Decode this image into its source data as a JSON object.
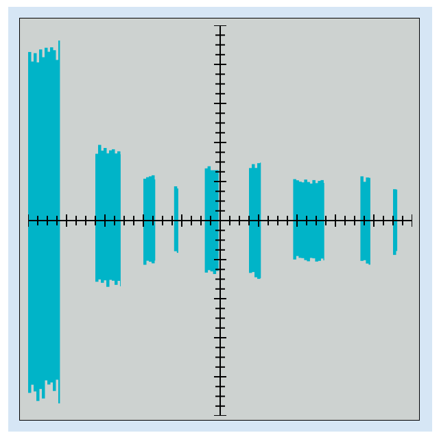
{
  "colors": {
    "background": "#d6e6f5",
    "screen": "#cdd2d0",
    "border": "#000000",
    "axis": "#000000",
    "signal": "#00b4c8"
  },
  "scope": {
    "signal_type": "burst signal trace",
    "h_divisions": 10,
    "v_divisions": 10,
    "minor_ticks_per_division": 4,
    "bursts": [
      {
        "start_div": 0.0,
        "end_div": 0.82,
        "amp_top": 4.65,
        "amp_bottom": 4.7
      },
      {
        "start_div": 1.75,
        "end_div": 2.4,
        "amp_top": 1.95,
        "amp_bottom": 1.7
      },
      {
        "start_div": 3.0,
        "end_div": 3.3,
        "amp_top": 1.2,
        "amp_bottom": 1.15
      },
      {
        "start_div": 3.8,
        "end_div": 3.9,
        "amp_top": 0.95,
        "amp_bottom": 0.9
      },
      {
        "start_div": 4.6,
        "end_div": 4.95,
        "amp_top": 1.4,
        "amp_bottom": 1.4
      },
      {
        "start_div": 5.75,
        "end_div": 6.05,
        "amp_top": 1.5,
        "amp_bottom": 1.5
      },
      {
        "start_div": 6.9,
        "end_div": 7.7,
        "amp_top": 1.1,
        "amp_bottom": 1.05
      },
      {
        "start_div": 8.65,
        "end_div": 8.9,
        "amp_top": 1.15,
        "amp_bottom": 1.15
      },
      {
        "start_div": 9.5,
        "end_div": 9.6,
        "amp_top": 0.9,
        "amp_bottom": 0.9
      }
    ]
  }
}
